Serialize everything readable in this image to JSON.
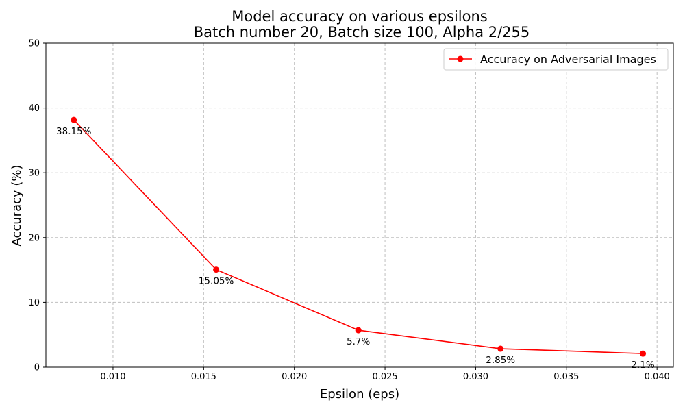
{
  "chart_data": {
    "type": "line",
    "title": [
      "Model accuracy on various epsilons",
      "Batch number 20, Batch size 100, Alpha 2/255"
    ],
    "xlabel": "Epsilon (eps)",
    "ylabel": "Accuracy (%)",
    "xlim": [
      0.0063,
      0.0409
    ],
    "ylim": [
      0,
      50
    ],
    "x_ticks": [
      "0.010",
      "0.015",
      "0.020",
      "0.025",
      "0.030",
      "0.035",
      "0.040"
    ],
    "y_ticks": [
      "0",
      "10",
      "20",
      "30",
      "40",
      "50"
    ],
    "grid": true,
    "legend_position": "top-right",
    "series": [
      {
        "name": "Accuracy on Adversarial Images",
        "color": "#ff0000",
        "marker": "circle",
        "x": [
          0.00784,
          0.01569,
          0.02353,
          0.03137,
          0.03922
        ],
        "y": [
          38.15,
          15.05,
          5.7,
          2.85,
          2.1
        ],
        "labels": [
          "38.15%",
          "15.05%",
          "5.7%",
          "2.85%",
          "2.1%"
        ]
      }
    ]
  }
}
